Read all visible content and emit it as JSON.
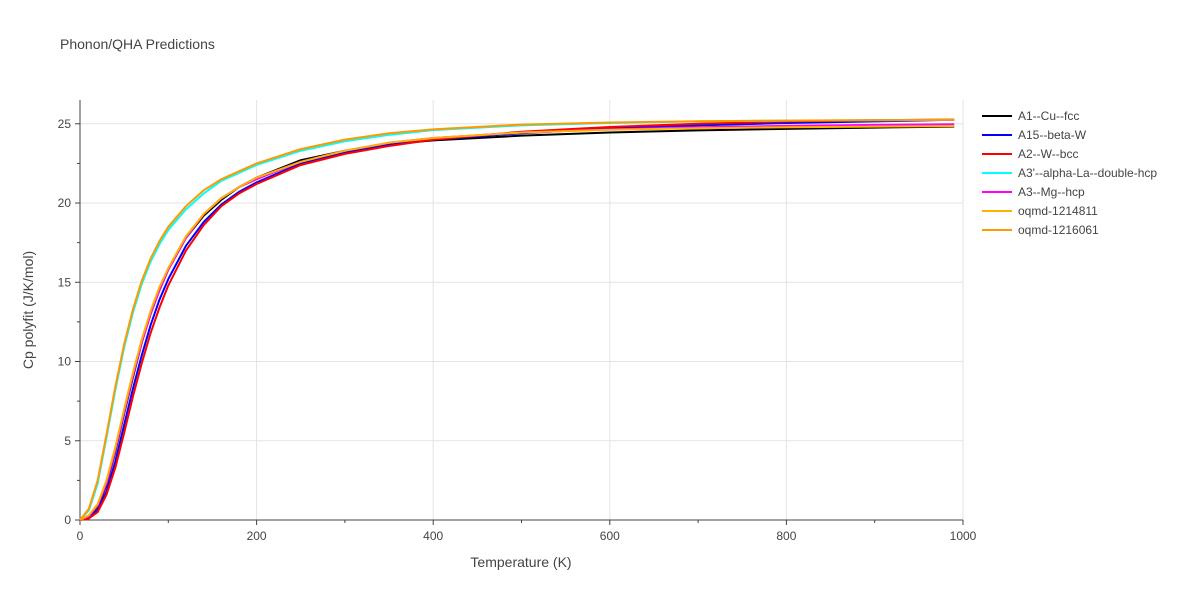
{
  "title": "Phonon/QHA Predictions",
  "chart_data": {
    "type": "line",
    "title": "Phonon/QHA Predictions",
    "xlabel": "Temperature (K)",
    "ylabel": "Cp polyfit (J/K/mol)",
    "xlim": [
      0,
      1000
    ],
    "ylim": [
      0,
      26.5
    ],
    "xticks": [
      0,
      200,
      400,
      600,
      800,
      1000
    ],
    "yticks": [
      0,
      5,
      10,
      15,
      20,
      25
    ],
    "grid": true,
    "legend_position": "right",
    "x": [
      0,
      10,
      20,
      30,
      40,
      50,
      60,
      70,
      80,
      90,
      100,
      120,
      140,
      160,
      180,
      200,
      250,
      300,
      350,
      400,
      500,
      600,
      700,
      800,
      900,
      990
    ],
    "series": [
      {
        "name": "A1--Cu--fcc",
        "color": "#000000",
        "values": [
          0,
          0.2,
          0.8,
          2.2,
          4.3,
          6.7,
          9.0,
          11.2,
          13.0,
          14.5,
          15.8,
          17.8,
          19.2,
          20.2,
          21.0,
          21.6,
          22.7,
          23.3,
          23.7,
          23.95,
          24.25,
          24.45,
          24.58,
          24.68,
          24.76,
          24.82
        ]
      },
      {
        "name": "A15--beta-W",
        "color": "#0000ff",
        "values": [
          0,
          0.15,
          0.6,
          1.8,
          3.7,
          6.0,
          8.3,
          10.4,
          12.3,
          13.9,
          15.2,
          17.3,
          18.8,
          19.9,
          20.7,
          21.3,
          22.5,
          23.2,
          23.7,
          24.0,
          24.4,
          24.7,
          24.9,
          25.05,
          25.15,
          25.25
        ]
      },
      {
        "name": "A2--W--bcc",
        "color": "#ff0000",
        "values": [
          0,
          0.1,
          0.5,
          1.6,
          3.3,
          5.5,
          7.8,
          9.9,
          11.8,
          13.4,
          14.8,
          17.0,
          18.6,
          19.8,
          20.6,
          21.2,
          22.4,
          23.1,
          23.6,
          24.0,
          24.5,
          24.8,
          25.0,
          25.15,
          25.22,
          25.27
        ]
      },
      {
        "name": "A3'--alpha-La--double-hcp",
        "color": "#00ffff",
        "values": [
          0,
          0.6,
          2.3,
          5.2,
          8.2,
          10.9,
          13.1,
          14.9,
          16.3,
          17.4,
          18.3,
          19.6,
          20.6,
          21.4,
          21.9,
          22.4,
          23.3,
          23.9,
          24.3,
          24.6,
          24.9,
          25.05,
          25.15,
          25.2,
          25.22,
          25.25
        ]
      },
      {
        "name": "A3--Mg--hcp",
        "color": "#ff00ff",
        "values": [
          0,
          0.25,
          0.9,
          2.3,
          4.4,
          6.8,
          9.1,
          11.2,
          13.0,
          14.5,
          15.8,
          17.8,
          19.3,
          20.3,
          21.0,
          21.5,
          22.6,
          23.3,
          23.8,
          24.1,
          24.45,
          24.65,
          24.78,
          24.87,
          24.93,
          24.97
        ]
      },
      {
        "name": "oqmd-1214811",
        "color": "#ffb000",
        "values": [
          0,
          0.3,
          1.0,
          2.5,
          4.6,
          7.0,
          9.3,
          11.4,
          13.2,
          14.7,
          15.9,
          17.9,
          19.3,
          20.3,
          21.0,
          21.6,
          22.6,
          23.3,
          23.8,
          24.1,
          24.45,
          24.62,
          24.72,
          24.78,
          24.82,
          24.85
        ]
      },
      {
        "name": "oqmd-1216061",
        "color": "#ff9900",
        "values": [
          0,
          0.7,
          2.5,
          5.4,
          8.4,
          11.1,
          13.3,
          15.1,
          16.5,
          17.6,
          18.5,
          19.8,
          20.8,
          21.5,
          22.0,
          22.5,
          23.4,
          24.0,
          24.4,
          24.65,
          24.95,
          25.08,
          25.16,
          25.2,
          25.23,
          25.25
        ]
      }
    ]
  }
}
